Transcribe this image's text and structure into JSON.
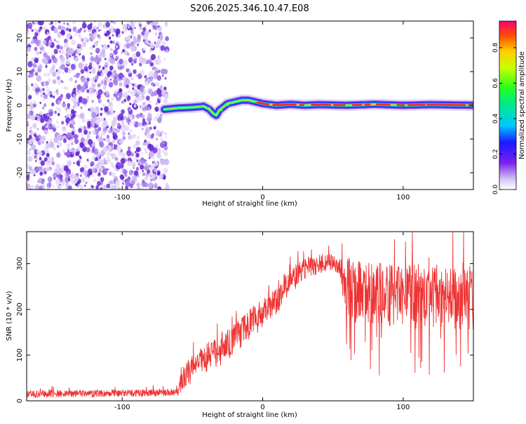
{
  "page": {
    "title": "S206.2025.346.10.47.E08"
  },
  "chart_data": [
    {
      "type": "heatmap",
      "title": "S206.2025.346.10.47.E08",
      "xlabel": "Height of straight line (km)",
      "ylabel": "Frequency (Hz)",
      "xlim": [
        -168,
        150
      ],
      "ylim": [
        -25,
        25
      ],
      "xticks": [
        -100,
        0,
        100
      ],
      "yticks": [
        -20,
        -10,
        0,
        10,
        20
      ],
      "noise_region_x": [
        -168,
        -68
      ],
      "signal_trace": {
        "x": [
          -70,
          -60,
          -50,
          -42,
          -38,
          -35,
          -33,
          -31,
          -28,
          -25,
          -20,
          -15,
          -10,
          -5,
          0,
          10,
          20,
          30,
          40,
          60,
          80,
          100,
          120,
          150
        ],
        "y": [
          -1.2,
          -0.8,
          -0.6,
          -0.3,
          -1.2,
          -2.5,
          -3.0,
          -1.5,
          -0.5,
          0.5,
          1.0,
          1.5,
          1.5,
          1.0,
          0.5,
          0.0,
          0.3,
          0.0,
          0.2,
          0.0,
          0.3,
          0.0,
          0.2,
          0.0
        ]
      },
      "colorbar": {
        "label": "Normalized spectral amplitude",
        "range": [
          0,
          0.95
        ],
        "ticks": [
          "0.0",
          "0.2",
          "0.4",
          "0.6",
          "0.8"
        ]
      }
    },
    {
      "type": "line",
      "xlabel": "Height of straight line (km)",
      "ylabel": "SNR (10 * v/v)",
      "xlim": [
        -168,
        150
      ],
      "ylim": [
        0,
        370
      ],
      "xticks": [
        -100,
        0,
        100
      ],
      "yticks": [
        0,
        100,
        200,
        300
      ],
      "color": "#ee3333",
      "envelope": {
        "x": [
          -168,
          -60,
          -58,
          -50,
          -40,
          -30,
          -20,
          -10,
          0,
          10,
          20,
          30,
          40,
          50,
          55,
          60,
          70,
          80,
          100,
          120,
          150
        ],
        "y": [
          15,
          18,
          45,
          70,
          95,
          110,
          135,
          165,
          190,
          220,
          260,
          290,
          300,
          305,
          295,
          245,
          235,
          235,
          230,
          230,
          225
        ]
      },
      "noise_amplitude": {
        "x": [
          -168,
          -60,
          -58,
          -10,
          10,
          25,
          55,
          60,
          150
        ],
        "y": [
          8,
          8,
          30,
          35,
          30,
          25,
          20,
          70,
          70
        ]
      }
    }
  ]
}
